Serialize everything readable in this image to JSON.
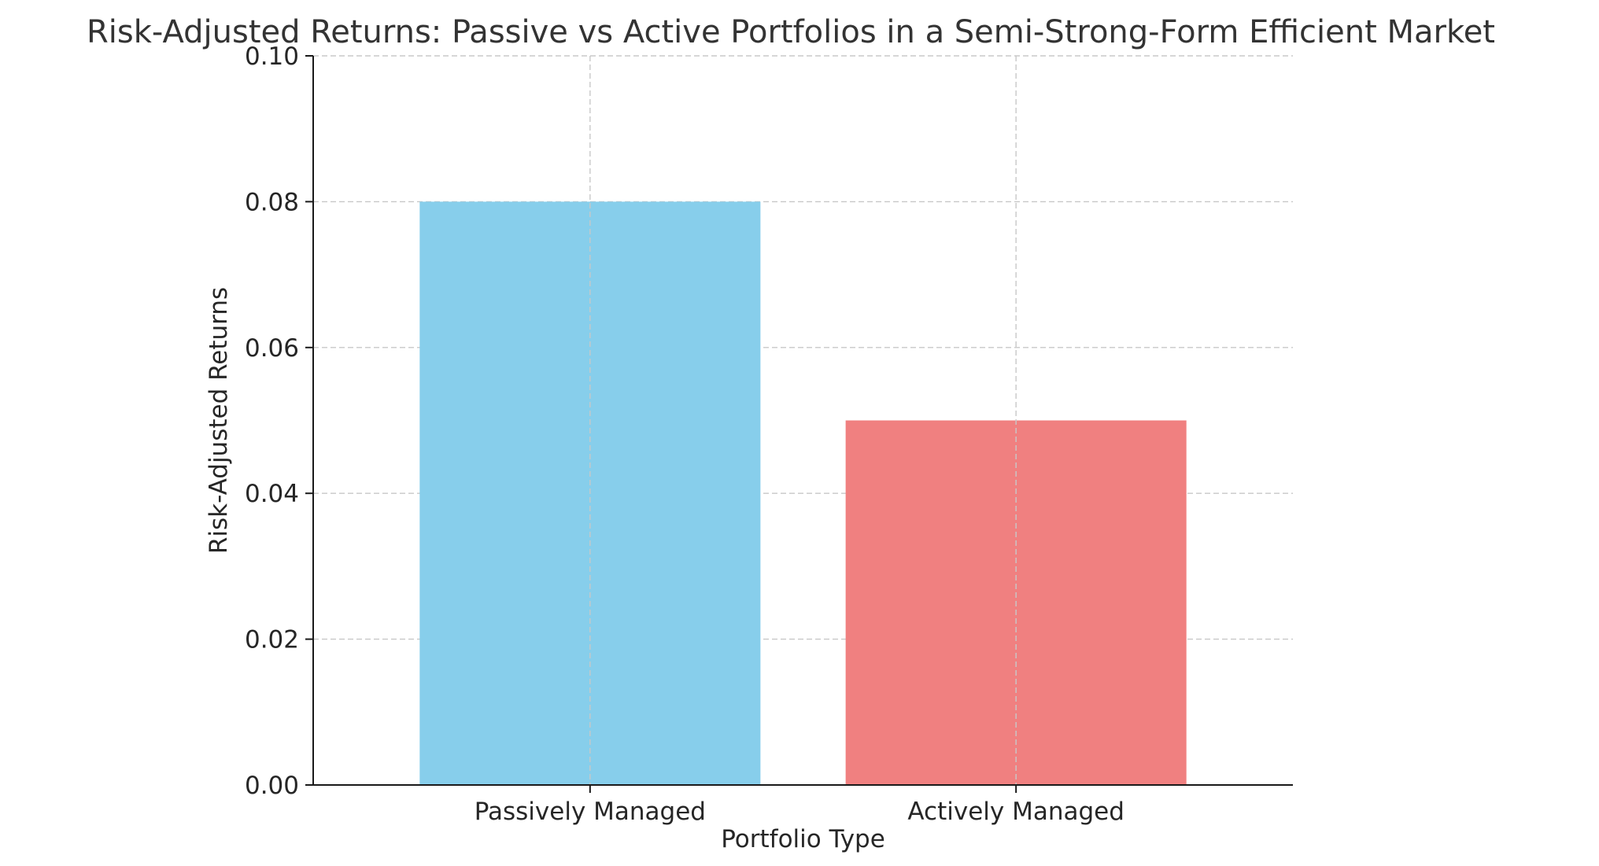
{
  "chart_data": {
    "type": "bar",
    "title": "Risk-Adjusted Returns: Passive vs Active Portfolios in a Semi-Strong-Form Efficient Market",
    "xlabel": "Portfolio Type",
    "ylabel": "Risk-Adjusted Returns",
    "categories": [
      "Passively Managed",
      "Actively Managed"
    ],
    "values": [
      0.08,
      0.05
    ],
    "bar_colors": [
      "#87CEEB",
      "#F08080"
    ],
    "ylim": [
      0,
      0.1
    ],
    "yticks": [
      0.0,
      0.02,
      0.04,
      0.06,
      0.08,
      0.1
    ],
    "ytick_labels": [
      "0.00",
      "0.02",
      "0.04",
      "0.06",
      "0.08",
      "0.10"
    ],
    "grid": true,
    "axis_color": "#1a1a1a",
    "grid_color": "#c8c8c8"
  }
}
